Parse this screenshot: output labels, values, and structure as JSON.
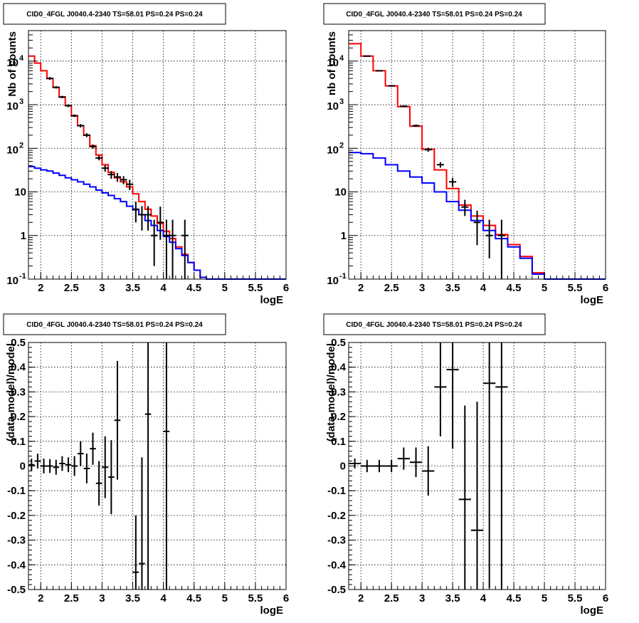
{
  "chart_data": [
    {
      "type": "line",
      "title": "CID0_4FGL J0040.4-2340 TS=58.01 PS=0.24 PS=0.24",
      "xlabel": "logE",
      "ylabel": "Nb of counts",
      "xlim": [
        1.8,
        6.0
      ],
      "ylim": [
        0.1,
        50000
      ],
      "yscale": "log",
      "grid": true,
      "xticks": [
        "2",
        "2.5",
        "3",
        "3.5",
        "4",
        "4.5",
        "5",
        "5.5",
        "6"
      ],
      "yticks": [
        {
          "base": "10",
          "exp": "-1",
          "text": ""
        },
        {
          "base": "",
          "exp": "",
          "text": "1"
        },
        {
          "base": "",
          "exp": "",
          "text": "10"
        },
        {
          "base": "10",
          "exp": "2",
          "text": ""
        },
        {
          "base": "10",
          "exp": "3",
          "text": ""
        },
        {
          "base": "10",
          "exp": "4",
          "text": ""
        }
      ],
      "bin_edges": [
        1.8,
        1.9,
        2.0,
        2.1,
        2.2,
        2.3,
        2.4,
        2.5,
        2.6,
        2.7,
        2.8,
        2.9,
        3.0,
        3.1,
        3.2,
        3.3,
        3.4,
        3.5,
        3.6,
        3.7,
        3.8,
        3.9,
        4.0,
        4.1,
        4.2,
        4.3,
        4.4,
        4.5,
        4.6,
        4.7,
        4.8,
        4.9,
        5.0,
        5.1,
        5.2,
        5.3,
        5.4,
        5.5,
        5.6,
        5.7,
        5.8,
        5.9,
        6.0
      ],
      "series": [
        {
          "color": "#ff0000",
          "values": [
            13000,
            9000,
            6000,
            4000,
            2500,
            1500,
            950,
            550,
            330,
            200,
            115,
            70,
            42,
            28,
            21,
            17,
            13,
            9,
            6,
            4,
            2.8,
            1.9,
            1.25,
            0.85,
            0.55,
            0.37,
            0.24,
            0.16,
            0.11,
            0.1,
            0.1,
            0.1,
            0.1,
            0.1,
            0.1,
            0.1,
            0.1,
            0.1,
            0.1,
            0.1,
            0.1,
            0.1
          ]
        },
        {
          "color": "#0000ff",
          "values": [
            38,
            35,
            32,
            30,
            27,
            24,
            21,
            19,
            17,
            15,
            13,
            11,
            9.5,
            8.3,
            7,
            6,
            4.7,
            3.9,
            3,
            2.2,
            1.7,
            1.3,
            0.95,
            0.7,
            0.5,
            0.35,
            0.24,
            0.16,
            0.11,
            0.1,
            0.1,
            0.1,
            0.1,
            0.1,
            0.1,
            0.1,
            0.1,
            0.1,
            0.1,
            0.1,
            0.1,
            0.1
          ]
        }
      ],
      "points": [
        {
          "x": 2.15,
          "y": 4000,
          "ylo": 3700,
          "yhi": 4300
        },
        {
          "x": 2.25,
          "y": 2500,
          "ylo": 2350,
          "yhi": 2650
        },
        {
          "x": 2.35,
          "y": 1500,
          "ylo": 1400,
          "yhi": 1600
        },
        {
          "x": 2.45,
          "y": 950,
          "ylo": 880,
          "yhi": 1020
        },
        {
          "x": 2.55,
          "y": 560,
          "ylo": 520,
          "yhi": 600
        },
        {
          "x": 2.65,
          "y": 330,
          "ylo": 300,
          "yhi": 360
        },
        {
          "x": 2.75,
          "y": 200,
          "ylo": 180,
          "yhi": 222
        },
        {
          "x": 2.85,
          "y": 110,
          "ylo": 98,
          "yhi": 122
        },
        {
          "x": 2.95,
          "y": 60,
          "ylo": 53,
          "yhi": 68
        },
        {
          "x": 3.05,
          "y": 35,
          "ylo": 29,
          "yhi": 41
        },
        {
          "x": 3.15,
          "y": 25,
          "ylo": 20,
          "yhi": 30
        },
        {
          "x": 3.25,
          "y": 22,
          "ylo": 17,
          "yhi": 27
        },
        {
          "x": 3.35,
          "y": 19,
          "ylo": 15,
          "yhi": 23
        },
        {
          "x": 3.45,
          "y": 15,
          "ylo": 11,
          "yhi": 19
        },
        {
          "x": 3.55,
          "y": 4,
          "ylo": 2,
          "yhi": 6
        },
        {
          "x": 3.65,
          "y": 3,
          "ylo": 1.3,
          "yhi": 4.7
        },
        {
          "x": 3.75,
          "y": 3,
          "ylo": 1.3,
          "yhi": 4.7
        },
        {
          "x": 3.85,
          "y": 1,
          "ylo": 0.2,
          "yhi": 2.3
        },
        {
          "x": 3.95,
          "y": 2,
          "ylo": 0.8,
          "yhi": 4.6
        },
        {
          "x": 4.05,
          "y": 1,
          "ylo": 0.1,
          "yhi": 2.3
        },
        {
          "x": 4.15,
          "y": 1,
          "ylo": 0.1,
          "yhi": 2.3
        },
        {
          "x": 4.35,
          "y": 1,
          "ylo": 0.1,
          "yhi": 2.3
        }
      ]
    },
    {
      "type": "line",
      "title": "CID0_4FGL J0040.4-2340 TS=58.01 PS=0.24 PS=0.24",
      "xlabel": "logE",
      "ylabel": "nb of counts",
      "xlim": [
        1.8,
        6.0
      ],
      "ylim": [
        0.1,
        50000
      ],
      "yscale": "log",
      "grid": true,
      "xticks": [
        "2",
        "2.5",
        "3",
        "3.5",
        "4",
        "4.5",
        "5",
        "5.5",
        "6"
      ],
      "yticks": [
        {
          "base": "10",
          "exp": "-1",
          "text": ""
        },
        {
          "base": "",
          "exp": "",
          "text": "1"
        },
        {
          "base": "",
          "exp": "",
          "text": "10"
        },
        {
          "base": "10",
          "exp": "2",
          "text": ""
        },
        {
          "base": "10",
          "exp": "3",
          "text": ""
        },
        {
          "base": "10",
          "exp": "4",
          "text": ""
        }
      ],
      "bin_edges": [
        1.8,
        2.0,
        2.2,
        2.4,
        2.6,
        2.8,
        3.0,
        3.2,
        3.4,
        3.6,
        3.8,
        4.0,
        4.2,
        4.4,
        4.6,
        4.8,
        5.0,
        5.2,
        5.4,
        5.6,
        5.8,
        6.0
      ],
      "series": [
        {
          "color": "#ff0000",
          "values": [
            25000,
            13000,
            6000,
            2700,
            900,
            320,
            95,
            32,
            12,
            5,
            2.8,
            1.7,
            1.05,
            0.62,
            0.33,
            0.14,
            0.1,
            0.1,
            0.1,
            0.1,
            0.1
          ]
        },
        {
          "color": "#0000ff",
          "values": [
            80,
            75,
            60,
            42,
            30,
            22,
            16,
            10,
            6,
            3.8,
            2.2,
            1.3,
            0.85,
            0.55,
            0.3,
            0.13,
            0.1,
            0.1,
            0.1,
            0.1,
            0.1
          ]
        }
      ],
      "points": [
        {
          "x": 2.1,
          "y": 13000,
          "ylo": 12700,
          "yhi": 13300
        },
        {
          "x": 2.3,
          "y": 6000,
          "ylo": 5800,
          "yhi": 6200
        },
        {
          "x": 2.5,
          "y": 2700,
          "ylo": 2600,
          "yhi": 2800
        },
        {
          "x": 2.7,
          "y": 920,
          "ylo": 880,
          "yhi": 960
        },
        {
          "x": 2.9,
          "y": 330,
          "ylo": 310,
          "yhi": 350
        },
        {
          "x": 3.1,
          "y": 93,
          "ylo": 83,
          "yhi": 103
        },
        {
          "x": 3.3,
          "y": 42,
          "ylo": 36,
          "yhi": 48
        },
        {
          "x": 3.5,
          "y": 17,
          "ylo": 13,
          "yhi": 21
        },
        {
          "x": 3.7,
          "y": 4.5,
          "ylo": 2.8,
          "yhi": 6.6
        },
        {
          "x": 3.9,
          "y": 2,
          "ylo": 0.6,
          "yhi": 3.7
        },
        {
          "x": 4.1,
          "y": 1,
          "ylo": 0.3,
          "yhi": 2.3
        },
        {
          "x": 4.3,
          "y": 1,
          "ylo": 0.1,
          "yhi": 2.3
        }
      ]
    },
    {
      "type": "scatter",
      "title": "CID0_4FGL J0040.4-2340 TS=58.01 PS=0.24 PS=0.24",
      "xlabel": "logE",
      "ylabel": "(data-model)/model",
      "xlim": [
        1.8,
        6.0
      ],
      "ylim": [
        -0.5,
        0.5
      ],
      "grid": true,
      "xticks": [
        "2",
        "2.5",
        "3",
        "3.5",
        "4",
        "4.5",
        "5",
        "5.5",
        "6"
      ],
      "yticks": [
        "-0.5",
        "-0.4",
        "-0.3",
        "-0.2",
        "-0.1",
        "0",
        "0.1",
        "0.2",
        "0.3",
        "0.4",
        "0.5"
      ],
      "points": [
        {
          "x": 1.85,
          "xerr": 0.05,
          "y": 0.005,
          "yerr": 0.025
        },
        {
          "x": 1.95,
          "xerr": 0.05,
          "y": 0.02,
          "yerr": 0.03
        },
        {
          "x": 2.05,
          "xerr": 0.05,
          "y": 0.0,
          "yerr": 0.03
        },
        {
          "x": 2.15,
          "xerr": 0.05,
          "y": 0.0,
          "yerr": 0.028
        },
        {
          "x": 2.25,
          "xerr": 0.05,
          "y": -0.005,
          "yerr": 0.03
        },
        {
          "x": 2.35,
          "xerr": 0.05,
          "y": 0.01,
          "yerr": 0.03
        },
        {
          "x": 2.45,
          "xerr": 0.05,
          "y": 0.005,
          "yerr": 0.03
        },
        {
          "x": 2.55,
          "xerr": 0.05,
          "y": 0.0,
          "yerr": 0.04
        },
        {
          "x": 2.65,
          "xerr": 0.05,
          "y": 0.05,
          "yerr": 0.05
        },
        {
          "x": 2.75,
          "xerr": 0.05,
          "y": -0.01,
          "yerr": 0.06
        },
        {
          "x": 2.85,
          "xerr": 0.05,
          "y": 0.07,
          "yerr": 0.065
        },
        {
          "x": 2.95,
          "xerr": 0.05,
          "y": -0.07,
          "yerr": 0.09
        },
        {
          "x": 3.05,
          "xerr": 0.05,
          "y": -0.005,
          "yerr": 0.125
        },
        {
          "x": 3.15,
          "xerr": 0.05,
          "y": -0.045,
          "yerr": 0.15
        },
        {
          "x": 3.25,
          "xerr": 0.05,
          "y": 0.185,
          "yerr": 0.24
        },
        {
          "x": 3.55,
          "xerr": 0.05,
          "y": -0.43,
          "yerr": 0.23
        },
        {
          "x": 3.65,
          "xerr": 0.05,
          "y": -0.395,
          "yerr": 0.43
        },
        {
          "x": 3.75,
          "xerr": 0.05,
          "y": 0.21,
          "yerr": 0.75
        },
        {
          "x": 4.05,
          "xerr": 0.05,
          "y": 0.14,
          "yerr": 0.9
        }
      ]
    },
    {
      "type": "scatter",
      "title": "CID0_4FGL J0040.4-2340 TS=58.01 PS=0.24 PS=0.24",
      "xlabel": "logE",
      "ylabel": "(data-model)/model",
      "xlim": [
        1.8,
        6.0
      ],
      "ylim": [
        -0.5,
        0.5
      ],
      "grid": true,
      "xticks": [
        "2",
        "2.5",
        "3",
        "3.5",
        "4",
        "4.5",
        "5",
        "5.5",
        "6"
      ],
      "yticks": [
        "-0.5",
        "-0.4",
        "-0.3",
        "-0.2",
        "-0.1",
        "0",
        "0.1",
        "0.2",
        "0.3",
        "0.4",
        "0.5"
      ],
      "points": [
        {
          "x": 1.9,
          "xerr": 0.1,
          "y": 0.01,
          "yerr": 0.02
        },
        {
          "x": 2.1,
          "xerr": 0.1,
          "y": 0.0,
          "yerr": 0.025
        },
        {
          "x": 2.3,
          "xerr": 0.1,
          "y": 0.0,
          "yerr": 0.025
        },
        {
          "x": 2.5,
          "xerr": 0.1,
          "y": 0.0,
          "yerr": 0.025
        },
        {
          "x": 2.7,
          "xerr": 0.1,
          "y": 0.03,
          "yerr": 0.045
        },
        {
          "x": 2.9,
          "xerr": 0.1,
          "y": 0.015,
          "yerr": 0.06
        },
        {
          "x": 3.1,
          "xerr": 0.1,
          "y": -0.02,
          "yerr": 0.1
        },
        {
          "x": 3.3,
          "xerr": 0.1,
          "y": 0.32,
          "yerr": 0.2
        },
        {
          "x": 3.5,
          "xerr": 0.1,
          "y": 0.39,
          "yerr": 0.32
        },
        {
          "x": 3.7,
          "xerr": 0.1,
          "y": -0.135,
          "yerr": 0.38
        },
        {
          "x": 3.9,
          "xerr": 0.1,
          "y": -0.26,
          "yerr": 0.52
        },
        {
          "x": 4.1,
          "xerr": 0.1,
          "y": 0.335,
          "yerr": 0.83
        },
        {
          "x": 4.3,
          "xerr": 0.1,
          "y": 0.32,
          "yerr": 0.95
        }
      ]
    }
  ]
}
